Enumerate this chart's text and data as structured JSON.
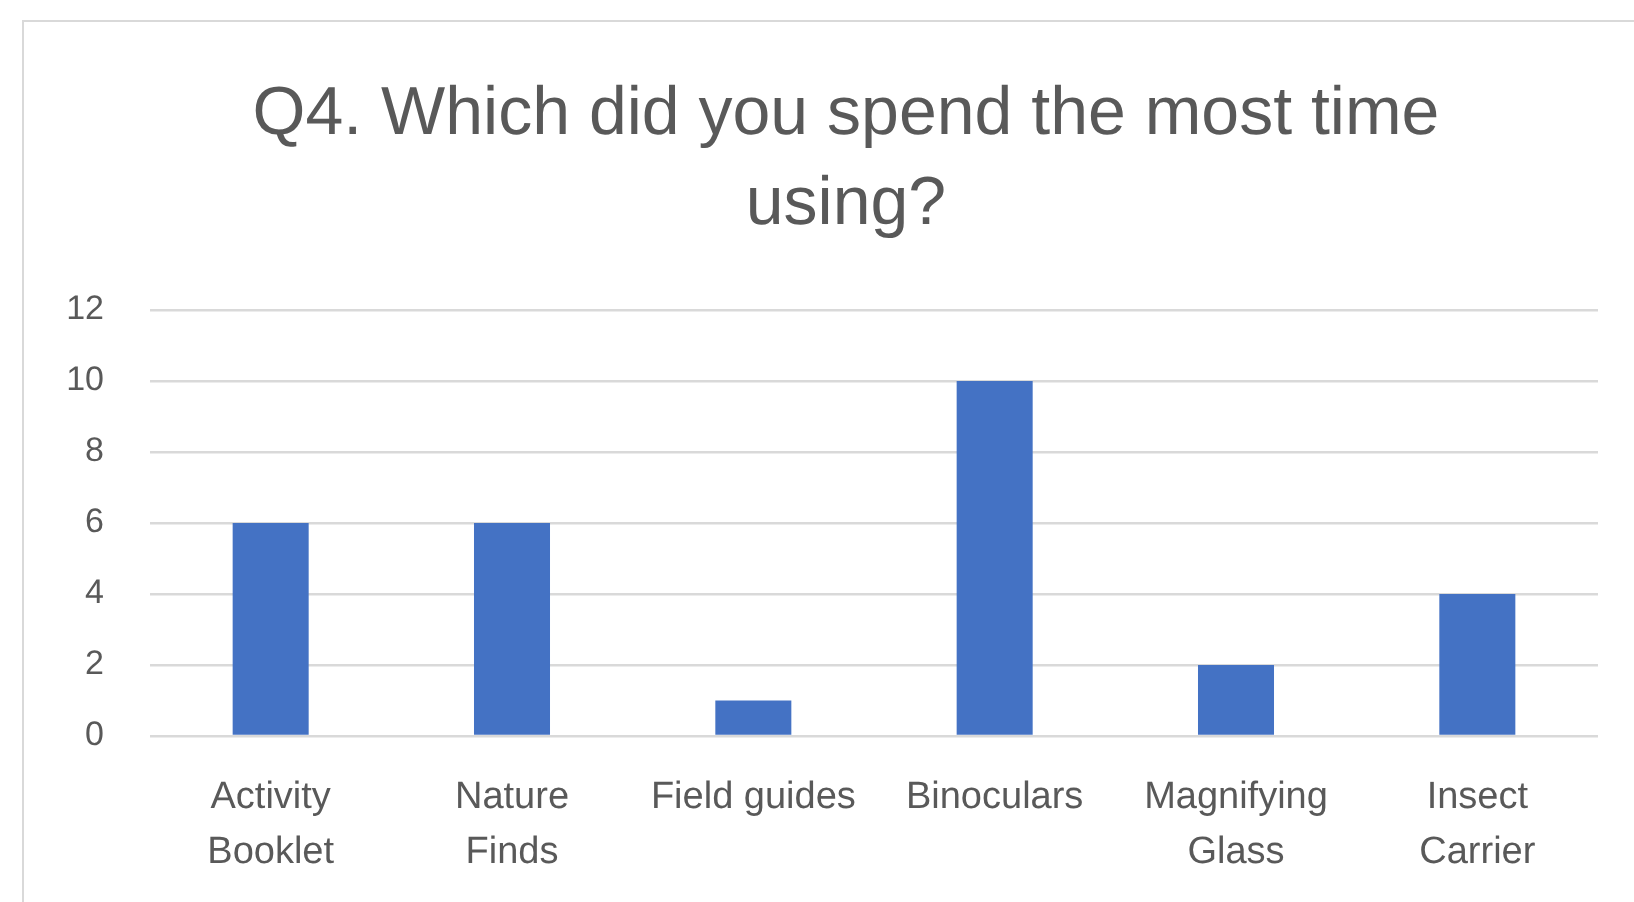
{
  "chart_data": {
    "type": "bar",
    "title": "Q4. Which did you spend the most time using?",
    "categories": [
      "Activity Booklet",
      "Nature Finds",
      "Field guides",
      "Binoculars",
      "Magnifying Glass",
      "Insect Carrier"
    ],
    "values": [
      6,
      6,
      1,
      10,
      2,
      4
    ],
    "color": "#4472c4",
    "ylim": [
      0,
      12
    ],
    "yticks": [
      0,
      2,
      4,
      6,
      8,
      10,
      12
    ],
    "grid": "y"
  }
}
